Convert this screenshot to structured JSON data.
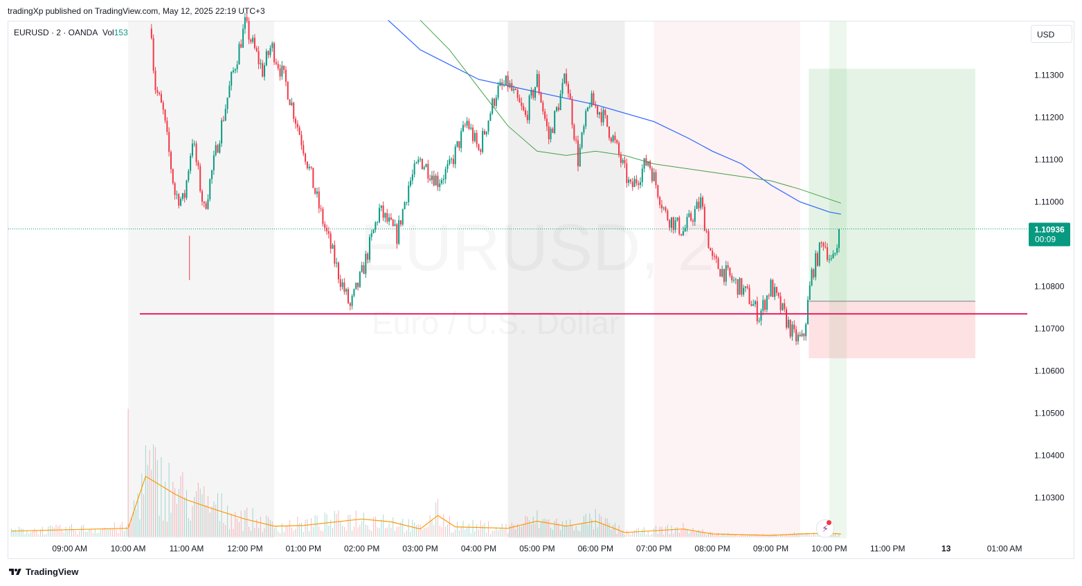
{
  "publisher": "tradingXp published on TradingView.com, May 12, 2025 22:19 UTC+3",
  "legend": {
    "symbol": "EURUSD · 2 · OANDA",
    "vol_label": "Vol",
    "vol_value": "153"
  },
  "currency_button": "USD",
  "footer": {
    "brand": "TradingView"
  },
  "watermark": {
    "symbol": "EURUSD, 2",
    "description": "Euro / U.S. Dollar"
  },
  "price_label": {
    "price": "1.10936",
    "countdown": "00:09"
  },
  "colors": {
    "up": "#089981",
    "down": "#f23645",
    "ma_blue": "#2962ff",
    "ma_green": "#43a047",
    "volume_ma": "#ff9800",
    "support": "#e91e63",
    "last_price": "#089981"
  },
  "chart_data": {
    "type": "candlestick",
    "symbol": "EURUSD",
    "timeframe_minutes": 2,
    "exchange": "OANDA",
    "x_ticks": [
      "09:00 AM",
      "10:00 AM",
      "11:00 AM",
      "12:00 PM",
      "01:00 PM",
      "02:00 PM",
      "03:00 PM",
      "04:00 PM",
      "05:00 PM",
      "06:00 PM",
      "07:00 PM",
      "08:00 PM",
      "09:00 PM",
      "10:00 PM",
      "11:00 PM",
      "13",
      "01:00 AM"
    ],
    "y_ticks": [
      "1.11300",
      "1.11200",
      "1.11100",
      "1.11000",
      "1.10800",
      "1.10700",
      "1.10600",
      "1.10500",
      "1.10400",
      "1.10300"
    ],
    "y_range": [
      1.1024,
      1.1143
    ],
    "price_path": [
      {
        "time": 10.4,
        "price": 1.1141
      },
      {
        "time": 10.45,
        "price": 1.1128
      },
      {
        "time": 10.6,
        "price": 1.1121
      },
      {
        "time": 10.8,
        "price": 1.1102
      },
      {
        "time": 10.95,
        "price": 1.11
      },
      {
        "time": 11.1,
        "price": 1.1115
      },
      {
        "time": 11.3,
        "price": 1.1098
      },
      {
        "time": 11.55,
        "price": 1.1115
      },
      {
        "time": 11.75,
        "price": 1.1128
      },
      {
        "time": 12.0,
        "price": 1.1142
      },
      {
        "time": 12.3,
        "price": 1.1131
      },
      {
        "time": 12.45,
        "price": 1.1137
      },
      {
        "time": 12.7,
        "price": 1.1128
      },
      {
        "time": 13.0,
        "price": 1.1113
      },
      {
        "time": 13.3,
        "price": 1.1097
      },
      {
        "time": 13.6,
        "price": 1.1083
      },
      {
        "time": 13.8,
        "price": 1.1075
      },
      {
        "time": 14.0,
        "price": 1.1083
      },
      {
        "time": 14.3,
        "price": 1.1098
      },
      {
        "time": 14.6,
        "price": 1.1092
      },
      {
        "time": 14.8,
        "price": 1.1104
      },
      {
        "time": 15.0,
        "price": 1.111
      },
      {
        "time": 15.3,
        "price": 1.1105
      },
      {
        "time": 15.5,
        "price": 1.1108
      },
      {
        "time": 15.8,
        "price": 1.1119
      },
      {
        "time": 16.0,
        "price": 1.1112
      },
      {
        "time": 16.3,
        "price": 1.1126
      },
      {
        "time": 16.5,
        "price": 1.1128
      },
      {
        "time": 16.8,
        "price": 1.112
      },
      {
        "time": 17.0,
        "price": 1.1129
      },
      {
        "time": 17.2,
        "price": 1.1115
      },
      {
        "time": 17.5,
        "price": 1.113
      },
      {
        "time": 17.7,
        "price": 1.111
      },
      {
        "time": 17.9,
        "price": 1.1124
      },
      {
        "time": 18.1,
        "price": 1.1121
      },
      {
        "time": 18.3,
        "price": 1.1115
      },
      {
        "time": 18.6,
        "price": 1.1103
      },
      {
        "time": 18.9,
        "price": 1.111
      },
      {
        "time": 19.2,
        "price": 1.1097
      },
      {
        "time": 19.5,
        "price": 1.1093
      },
      {
        "time": 19.8,
        "price": 1.11
      },
      {
        "time": 20.0,
        "price": 1.1086
      },
      {
        "time": 20.3,
        "price": 1.1082
      },
      {
        "time": 20.6,
        "price": 1.1078
      },
      {
        "time": 20.8,
        "price": 1.1073
      },
      {
        "time": 21.0,
        "price": 1.108
      },
      {
        "time": 21.2,
        "price": 1.1074
      },
      {
        "time": 21.4,
        "price": 1.1068
      },
      {
        "time": 21.55,
        "price": 1.1067
      },
      {
        "time": 21.7,
        "price": 1.1083
      },
      {
        "time": 21.9,
        "price": 1.1091
      },
      {
        "time": 22.05,
        "price": 1.1085
      },
      {
        "time": 22.2,
        "price": 1.10936
      }
    ],
    "price_low_wick": {
      "time": 11.05,
      "price": 1.10815
    },
    "sma_blue": [
      {
        "time": 14.45,
        "price": 1.1143
      },
      {
        "time": 15.0,
        "price": 1.1136
      },
      {
        "time": 16.0,
        "price": 1.1129
      },
      {
        "time": 17.0,
        "price": 1.1126
      },
      {
        "time": 18.0,
        "price": 1.1123
      },
      {
        "time": 19.0,
        "price": 1.1119
      },
      {
        "time": 19.6,
        "price": 1.1115
      },
      {
        "time": 20.0,
        "price": 1.1112
      },
      {
        "time": 20.5,
        "price": 1.1109
      },
      {
        "time": 21.0,
        "price": 1.1104
      },
      {
        "time": 21.5,
        "price": 1.11
      },
      {
        "time": 22.0,
        "price": 1.10976
      },
      {
        "time": 22.2,
        "price": 1.10971
      }
    ],
    "sma_green": [
      {
        "time": 15.0,
        "price": 1.1143
      },
      {
        "time": 15.5,
        "price": 1.1136
      },
      {
        "time": 16.0,
        "price": 1.1127
      },
      {
        "time": 16.5,
        "price": 1.1118
      },
      {
        "time": 17.0,
        "price": 1.1112
      },
      {
        "time": 17.5,
        "price": 1.1111
      },
      {
        "time": 18.0,
        "price": 1.1112
      },
      {
        "time": 18.5,
        "price": 1.1111
      },
      {
        "time": 19.0,
        "price": 1.1109
      },
      {
        "time": 20.0,
        "price": 1.1107
      },
      {
        "time": 21.0,
        "price": 1.1105
      },
      {
        "time": 21.5,
        "price": 1.1103
      },
      {
        "time": 22.2,
        "price": 1.10997
      }
    ],
    "support_level": 1.10735,
    "support_start_time": 10.2,
    "last_price": 1.10936,
    "position": {
      "type": "long",
      "start_time": 21.65,
      "end_time": 24.5,
      "entry": 1.10765,
      "target": 1.11315,
      "stop": 1.1063
    },
    "session_bands": [
      {
        "from": 10.0,
        "to": 12.5,
        "color": "#f5f5f5"
      },
      {
        "from": 16.5,
        "to": 18.5,
        "color": "#efefef"
      },
      {
        "from": 19.0,
        "to": 21.5,
        "color": "#fdf2f4"
      },
      {
        "from": 22.0,
        "to": 22.3,
        "color": "#edf7ee"
      }
    ],
    "volume": {
      "max": 180,
      "spike": {
        "time": 10.0,
        "value": 180
      },
      "ma": [
        {
          "time": 8.0,
          "value": 8
        },
        {
          "time": 9.0,
          "value": 10
        },
        {
          "time": 9.5,
          "value": 11
        },
        {
          "time": 10.0,
          "value": 12
        },
        {
          "time": 10.3,
          "value": 85
        },
        {
          "time": 10.5,
          "value": 75
        },
        {
          "time": 10.8,
          "value": 60
        },
        {
          "time": 11.0,
          "value": 52
        },
        {
          "time": 11.5,
          "value": 38
        },
        {
          "time": 12.0,
          "value": 25
        },
        {
          "time": 12.5,
          "value": 15
        },
        {
          "time": 13.0,
          "value": 16
        },
        {
          "time": 14.0,
          "value": 25
        },
        {
          "time": 14.5,
          "value": 21
        },
        {
          "time": 15.0,
          "value": 11
        },
        {
          "time": 15.3,
          "value": 30
        },
        {
          "time": 15.6,
          "value": 14
        },
        {
          "time": 16.5,
          "value": 12
        },
        {
          "time": 17.0,
          "value": 22
        },
        {
          "time": 17.5,
          "value": 15
        },
        {
          "time": 18.0,
          "value": 22
        },
        {
          "time": 18.5,
          "value": 6
        },
        {
          "time": 19.5,
          "value": 11
        },
        {
          "time": 20.0,
          "value": 4
        },
        {
          "time": 21.0,
          "value": 2
        },
        {
          "time": 21.5,
          "value": 4
        },
        {
          "time": 22.0,
          "value": 5
        },
        {
          "time": 22.2,
          "value": 4
        }
      ]
    }
  }
}
